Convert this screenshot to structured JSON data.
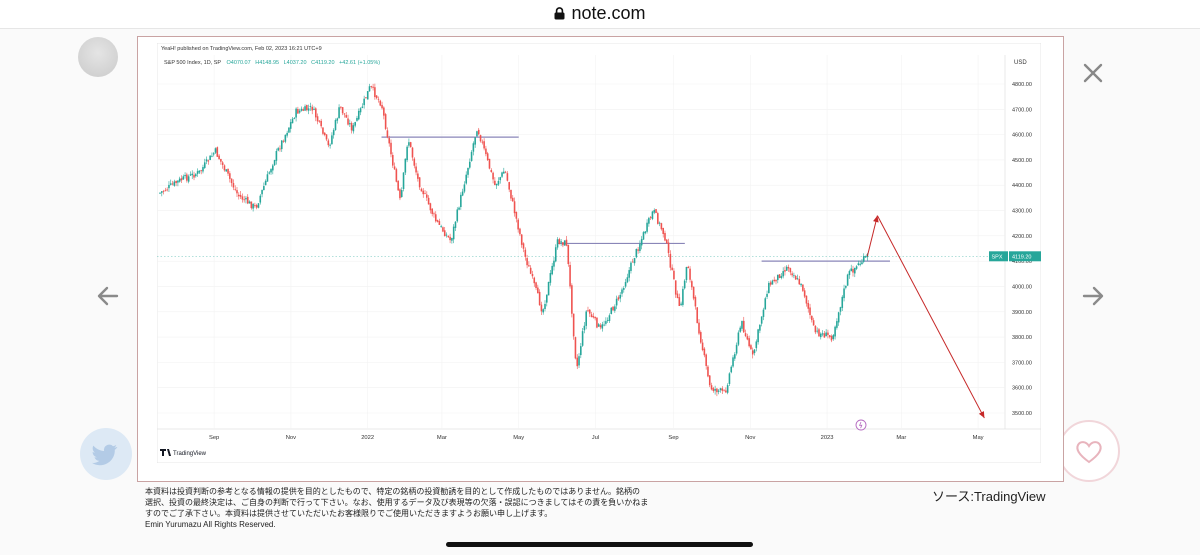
{
  "browser": {
    "url": "note.com"
  },
  "chart_header": {
    "published_line": "YeaH! published on TradingView.com, Feb 02, 2023 16:21 UTC+9",
    "symbol_line": "S&P 500 Index, 1D, SP",
    "ohlc": {
      "open": "O4070.07",
      "high": "H4148.95",
      "low": "L4037.20",
      "close": "C4119.20",
      "change": "+42.61 (+1.05%)"
    },
    "currency": "USD",
    "price_tag_symbol": "SPX",
    "price_tag_value": "4119.20",
    "brand": "TradingView"
  },
  "chart_data": {
    "type": "line",
    "title": "",
    "xlabel": "",
    "ylabel": "",
    "x_ticks": [
      "Sep",
      "Nov",
      "2022",
      "Mar",
      "May",
      "Jul",
      "Sep",
      "Nov",
      "2023",
      "Mar",
      "May"
    ],
    "y_ticks": [
      3500,
      3600,
      3700,
      3800,
      3900,
      4000,
      4100,
      4200,
      4300,
      4400,
      4500,
      4600,
      4700,
      4800
    ],
    "y_tick_labels": [
      "3500.00",
      "3600.00",
      "3700.00",
      "3800.00",
      "3900.00",
      "4000.00",
      "4100.00",
      "4200.00",
      "4300.00",
      "4400.00",
      "4500.00",
      "4600.00",
      "4700.00",
      "4800.00"
    ],
    "ylim": [
      3440,
      4830
    ],
    "date_range": [
      "2021-07-20",
      "2023-05-20"
    ],
    "last_price": 4119.2,
    "series": [
      {
        "x": [
          "2021-07-20",
          "2021-08-05",
          "2021-08-20",
          "2021-09-02",
          "2021-09-20",
          "2021-10-04",
          "2021-10-20",
          "2021-11-05",
          "2021-11-18",
          "2021-12-01",
          "2021-12-10",
          "2021-12-20",
          "2022-01-03",
          "2022-01-12",
          "2022-01-27",
          "2022-02-02",
          "2022-02-10",
          "2022-02-24",
          "2022-03-08",
          "2022-03-29",
          "2022-04-12",
          "2022-04-20",
          "2022-05-06",
          "2022-05-20",
          "2022-06-01",
          "2022-06-08",
          "2022-06-16",
          "2022-06-24",
          "2022-07-05",
          "2022-07-20",
          "2022-08-01",
          "2022-08-16",
          "2022-08-25",
          "2022-09-06",
          "2022-09-12",
          "2022-09-20",
          "2022-09-30",
          "2022-10-12",
          "2022-10-25",
          "2022-11-03",
          "2022-11-15",
          "2022-12-01",
          "2022-12-13",
          "2022-12-22",
          "2023-01-05",
          "2023-01-18",
          "2023-02-02"
        ],
        "y": [
          4370,
          4420,
          4450,
          4535,
          4360,
          4310,
          4520,
          4690,
          4705,
          4550,
          4710,
          4620,
          4790,
          4720,
          4330,
          4590,
          4420,
          4260,
          4180,
          4630,
          4400,
          4460,
          4120,
          3900,
          4180,
          4170,
          3670,
          3910,
          3830,
          3960,
          4120,
          4300,
          4200,
          3900,
          4100,
          3860,
          3600,
          3580,
          3860,
          3720,
          4000,
          4080,
          3990,
          3820,
          3800,
          4050,
          4119.2
        ]
      }
    ],
    "horizontal_lines": [
      {
        "value": 4590,
        "from": "2022-01-12",
        "to": "2022-05-01"
      },
      {
        "value": 4170,
        "from": "2022-06-01",
        "to": "2022-09-10"
      },
      {
        "value": 4100,
        "from": "2022-11-10",
        "to": "2023-02-20"
      }
    ],
    "projection": [
      {
        "x": "2023-02-02",
        "y": 4119.2
      },
      {
        "x": "2023-02-10",
        "y": 4280
      },
      {
        "x": "2023-05-06",
        "y": 3480
      }
    ],
    "colors": {
      "up": "#26a69a",
      "down": "#ef5350",
      "hline": "#8a86b8",
      "projection": "#c62828"
    },
    "grid": true
  },
  "disclaimer": {
    "lines": [
      "本資料は投資判断の参考となる情報の提供を目的としたもので、特定の銘柄の投資勧誘を目的として作成したものではありません。銘柄の",
      "選択、投資の最終決定は、ご自身の判断で行って下さい。なお、使用するデータ及び表現等の欠落・誤認につきましてはその責を負いかねま",
      "すのでご了承下さい。本資料は提供させていただいたお客様限りでご使用いただきますようお願い申し上げます。",
      "Emin Yurumazu All Rights Reserved."
    ]
  },
  "source_label": "ソース:TradingView",
  "icons": [
    "lock-icon",
    "close-icon",
    "arrow-left-icon",
    "arrow-right-icon",
    "twitter-icon",
    "heart-icon",
    "tradingview-logo-icon",
    "event-flag-icon"
  ]
}
